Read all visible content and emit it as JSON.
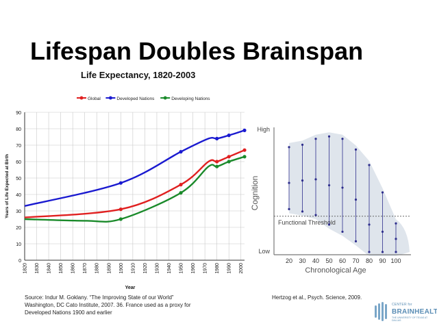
{
  "slide": {
    "title": "Lifespan Doubles Brainspan"
  },
  "sources": {
    "left_line1": "Source: Indur M. Goklany. “The Improving State of our World”",
    "left_line2": "Washington, DC Cato Institute, 2007. 36. France used as a proxy for",
    "left_line3": "Developed Nations 1900 and earlier",
    "right": "Hertzog et al., Psych. Science, 2009."
  },
  "logo": {
    "line1": "CENTER for",
    "line2": "BRAINHEALTH",
    "line3": "THE UNIVERSITY OF TEXAS AT DALLAS",
    "icon": "brain-icon",
    "color": "#5a8db5"
  },
  "chart_data": [
    {
      "type": "line",
      "title": "Life Expectancy, 1820-2003",
      "xlabel": "Year",
      "ylabel": "Years of Life Expected at Birth",
      "x_ticks": [
        "1820",
        "1830",
        "1840",
        "1850",
        "1860",
        "1870",
        "1880",
        "1890",
        "1900",
        "1910",
        "1920",
        "1930",
        "1940",
        "1950",
        "1960",
        "1970",
        "1980",
        "1990",
        "2000"
      ],
      "y_ticks": [
        0,
        10,
        20,
        30,
        40,
        50,
        60,
        70,
        80,
        90
      ],
      "xlim": [
        1820,
        2003
      ],
      "ylim": [
        0,
        90
      ],
      "grid": true,
      "legend_position": "top",
      "series": [
        {
          "name": "Global",
          "color": "#e02020",
          "x": [
            1820,
            1900,
            1950,
            1973,
            1980,
            1990,
            2003
          ],
          "y": [
            26,
            31,
            46,
            60,
            60,
            63,
            67
          ],
          "markers_x": [
            1900,
            1950,
            1980,
            1990,
            2003
          ],
          "markers_y": [
            31,
            46,
            60,
            63,
            67
          ]
        },
        {
          "name": "Developed Nations",
          "color": "#1a1ad0",
          "x": [
            1820,
            1900,
            1950,
            1973,
            1980,
            1990,
            2003
          ],
          "y": [
            33,
            47,
            66,
            74,
            74,
            76,
            79
          ],
          "markers_x": [
            1900,
            1950,
            1980,
            1990,
            2003
          ],
          "markers_y": [
            47,
            66,
            74,
            76,
            79
          ]
        },
        {
          "name": "Developing Nations",
          "color": "#1a8a2a",
          "x": [
            1820,
            1870,
            1900,
            1950,
            1973,
            1980,
            1990,
            2003
          ],
          "y": [
            25,
            24,
            25,
            41,
            57,
            57,
            60,
            63
          ],
          "markers_x": [
            1900,
            1950,
            1980,
            1990,
            2003
          ],
          "markers_y": [
            25,
            41,
            57,
            60,
            63
          ]
        }
      ]
    },
    {
      "type": "scatter",
      "xlabel": "Chronological Age",
      "ylabel": "Cognition",
      "x_ticks": [
        "20",
        "30",
        "40",
        "50",
        "60",
        "70",
        "80",
        "90",
        "100"
      ],
      "y_tick_labels": [
        "High",
        "Low"
      ],
      "threshold_label": "Functional Threshold",
      "color": "#2d2d8c",
      "ranges": [
        {
          "age": 20,
          "high": 0.88,
          "mid": 0.58,
          "low": 0.36
        },
        {
          "age": 30,
          "high": 0.9,
          "mid": 0.6,
          "low": 0.34
        },
        {
          "age": 40,
          "high": 0.95,
          "mid": 0.61,
          "low": 0.31
        },
        {
          "age": 50,
          "high": 0.97,
          "mid": 0.56,
          "low": 0.23
        },
        {
          "age": 60,
          "high": 0.95,
          "mid": 0.54,
          "low": 0.17
        },
        {
          "age": 70,
          "high": 0.86,
          "mid": 0.44,
          "low": 0.09
        },
        {
          "age": 80,
          "high": 0.73,
          "mid": 0.23,
          "low": 0.0
        },
        {
          "age": 90,
          "high": 0.5,
          "mid": 0.17,
          "low": 0.0
        },
        {
          "age": 100,
          "high": 0.24,
          "mid": 0.11,
          "low": 0.0
        }
      ]
    }
  ]
}
